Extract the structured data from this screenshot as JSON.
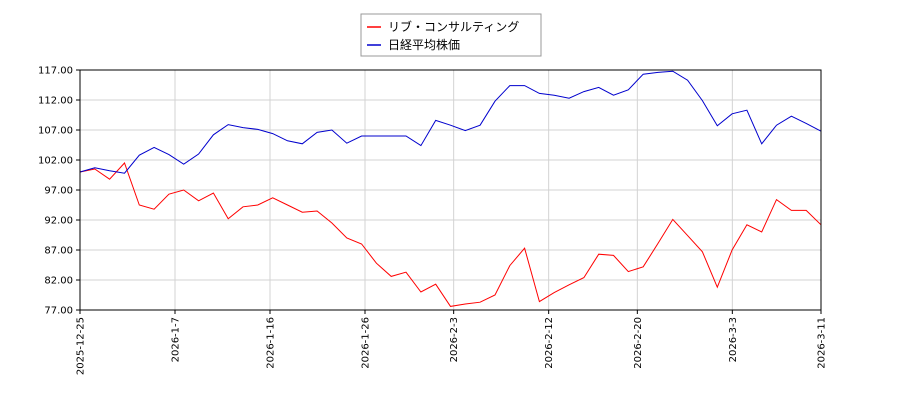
{
  "chart_data": {
    "type": "line",
    "title": "",
    "xlabel": "",
    "ylabel": "",
    "ylim": [
      77,
      117
    ],
    "yticks": [
      "77.00",
      "82.00",
      "87.00",
      "92.00",
      "97.00",
      "102.00",
      "107.00",
      "112.00",
      "117.00"
    ],
    "xticks": [
      "2025-12-25",
      "2026-1-7",
      "2026-1-16",
      "2026-1-26",
      "2026-2-3",
      "2026-2-12",
      "2026-2-20",
      "2026-3-3",
      "2026-3-11"
    ],
    "grid": true,
    "legend_position": "top-center",
    "x": [
      0,
      1,
      2,
      3,
      4,
      5,
      6,
      7,
      8,
      9,
      10,
      11,
      12,
      13,
      14,
      15,
      16,
      17,
      18,
      19,
      20,
      21,
      22,
      23,
      24,
      25,
      26,
      27,
      28,
      29,
      30,
      31,
      32,
      33,
      34,
      35,
      36,
      37,
      38,
      39,
      40,
      41,
      42,
      43,
      44,
      45,
      46,
      47,
      48,
      49,
      50
    ],
    "series": [
      {
        "name": "リブ・コンサルティング",
        "color": "#ff0000",
        "values": [
          100,
          100.5,
          98.8,
          101.5,
          94.5,
          93.8,
          96.3,
          97,
          95.2,
          96.5,
          92.2,
          94.2,
          94.5,
          95.7,
          94.5,
          93.3,
          93.5,
          91.5,
          89,
          88,
          84.8,
          82.6,
          83.3,
          80,
          81.3,
          77.6,
          78,
          78.3,
          79.5,
          84.4,
          87.3,
          78.4,
          79.9,
          81.2,
          82.4,
          86.3,
          86.1,
          83.4,
          84.2,
          88.1,
          92.1,
          89.4,
          86.7,
          80.8,
          87,
          91.2,
          90,
          95.4,
          93.6,
          93.6,
          91.2
        ]
      },
      {
        "name": "日経平均株価",
        "color": "#0000cd",
        "values": [
          100,
          100.7,
          100.2,
          99.8,
          102.8,
          104.1,
          102.9,
          101.3,
          103,
          106.2,
          107.9,
          107.4,
          107.1,
          106.4,
          105.2,
          104.7,
          106.6,
          107,
          104.8,
          106,
          106,
          106,
          106,
          104.4,
          108.6,
          107.8,
          106.9,
          107.8,
          111.8,
          114.4,
          114.4,
          113.1,
          112.8,
          112.3,
          113.4,
          114.1,
          112.8,
          113.7,
          116.3,
          116.6,
          116.8,
          115.3,
          111.9,
          107.7,
          109.7,
          110.3,
          104.7,
          107.8,
          109.3,
          108.1,
          106.8
        ]
      }
    ]
  }
}
